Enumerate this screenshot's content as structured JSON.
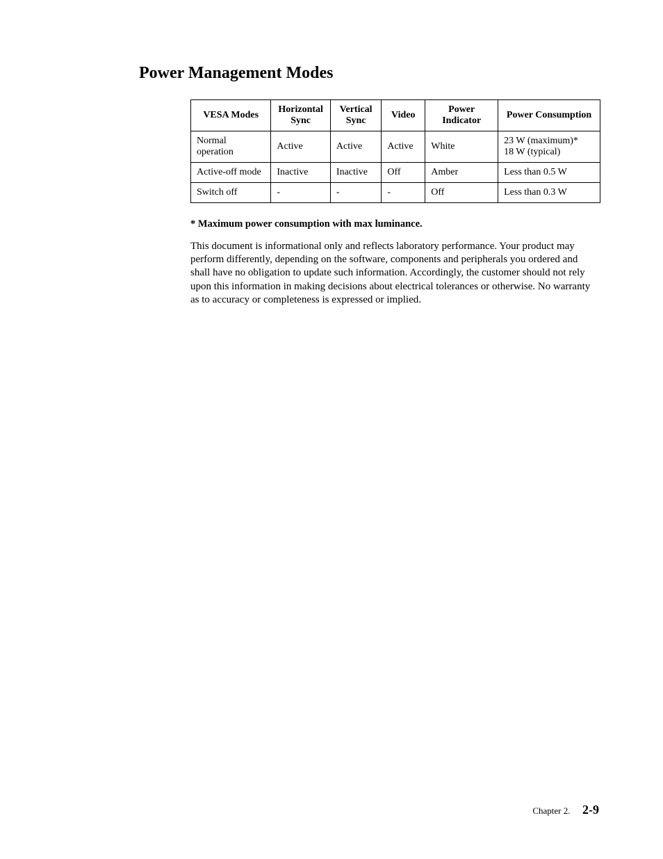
{
  "heading": "Power Management Modes",
  "table": {
    "columns": [
      "VESA Modes",
      "Horizontal Sync",
      "Vertical Sync",
      "Video",
      "Power Indicator",
      "Power Consumption"
    ],
    "rows": [
      [
        "Normal operation",
        "Active",
        "Active",
        "Active",
        "White",
        "23 W (maximum)*\n18 W (typical)"
      ],
      [
        "Active-off mode",
        "Inactive",
        "Inactive",
        "Off",
        "Amber",
        "Less than 0.5 W"
      ],
      [
        "Switch off",
        "-",
        "-",
        "-",
        "Off",
        "Less than 0.3 W"
      ]
    ]
  },
  "note_bold": "* Maximum power consumption with max luminance.",
  "body_text": "This document is informational only and reflects laboratory performance. Your product may perform differently, depending on the software, components and peripherals you ordered and shall have no obligation to update such information. Accordingly, the customer should not rely upon this information in making decisions about electrical tolerances or otherwise. No warranty as to accuracy or completeness is expressed or implied.",
  "footer": {
    "chapter": "Chapter 2.",
    "page": "2-9"
  },
  "style": {
    "page_bg": "#ffffff",
    "text_color": "#000000",
    "border_color": "#000000",
    "heading_fontsize": 24,
    "table_fontsize": 14,
    "body_fontsize": 15,
    "footer_page_fontsize": 18
  }
}
